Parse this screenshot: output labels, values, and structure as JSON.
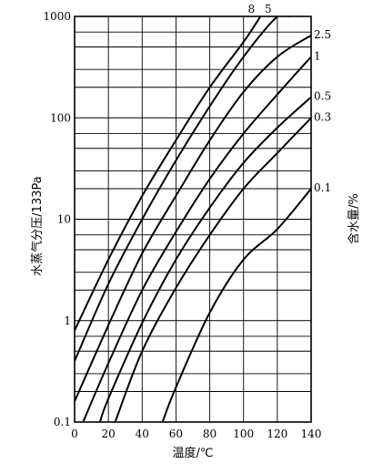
{
  "chart_data": {
    "type": "line",
    "title": "",
    "xlabel": "温度/℃",
    "ylabel": "水蒸气分压/133Pa",
    "right_axis_label": "含水量/%",
    "xlim": [
      0,
      140
    ],
    "ylim": [
      0.1,
      1000
    ],
    "yscale": "log",
    "grid": true,
    "x_ticks": [
      0,
      20,
      40,
      60,
      80,
      100,
      120,
      140
    ],
    "x_tick_labels": [
      "0",
      "20",
      "40",
      "60",
      "80",
      "100",
      "120",
      "140"
    ],
    "y_ticks": [
      0.1,
      1,
      10,
      100,
      1000
    ],
    "y_tick_labels": [
      "0.1",
      "1",
      "10",
      "100",
      "1000"
    ],
    "series": [
      {
        "name": "8",
        "x": [
          0,
          20,
          40,
          60,
          80,
          100,
          110
        ],
        "y": [
          0.8,
          4.0,
          17,
          60,
          200,
          560,
          1000
        ]
      },
      {
        "name": "5",
        "x": [
          0,
          20,
          40,
          60,
          80,
          100,
          120,
          127
        ],
        "y": [
          0.4,
          2.3,
          10,
          38,
          130,
          400,
          1000,
          1000
        ]
      },
      {
        "name": "2.5",
        "x": [
          0,
          20,
          40,
          60,
          80,
          100,
          120,
          140
        ],
        "y": [
          0.16,
          0.9,
          4.6,
          17,
          60,
          180,
          400,
          650
        ]
      },
      {
        "name": "1",
        "x": [
          5,
          20,
          40,
          60,
          80,
          100,
          120,
          140
        ],
        "y": [
          0.1,
          0.38,
          2.0,
          7.5,
          25,
          70,
          170,
          400
        ]
      },
      {
        "name": "0.5",
        "x": [
          15,
          20,
          40,
          60,
          80,
          100,
          120,
          140
        ],
        "y": [
          0.1,
          0.17,
          0.95,
          4.0,
          13,
          36,
          80,
          160
        ]
      },
      {
        "name": "0.3",
        "x": [
          24,
          40,
          60,
          80,
          100,
          120,
          140
        ],
        "y": [
          0.1,
          0.5,
          2.1,
          7.0,
          20,
          45,
          100
        ]
      },
      {
        "name": "0.1",
        "x": [
          52,
          60,
          80,
          100,
          120,
          140
        ],
        "y": [
          0.1,
          0.22,
          1.2,
          4.0,
          8.0,
          20
        ]
      }
    ]
  }
}
